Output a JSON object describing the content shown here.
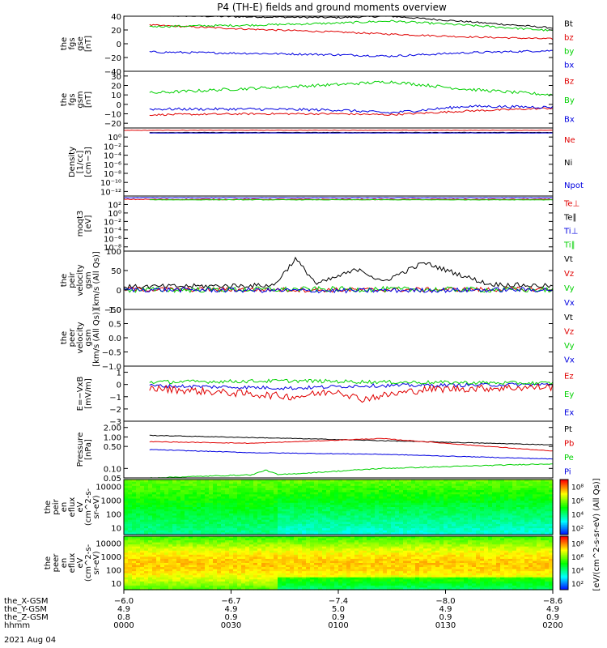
{
  "title": "P4 (TH-E) fields and ground moments overview",
  "date": "2021 Aug 04",
  "colors": {
    "black": "#000000",
    "red": "#e00000",
    "green": "#00d000",
    "blue": "#0000e0"
  },
  "chart_data": [
    {
      "type": "line",
      "name": "the_fgs_gse",
      "ylabel": [
        "the",
        "fgs",
        "gse",
        "[nT]"
      ],
      "ylim": [
        -40,
        40
      ],
      "yticks": [
        {
          "v": 40,
          "t": "40"
        },
        {
          "v": 20,
          "t": "20"
        },
        {
          "v": 0,
          "t": "0"
        },
        {
          "v": -20,
          "t": "−20"
        },
        {
          "v": -40,
          "t": "−40"
        }
      ],
      "legend": [
        {
          "t": "Bt",
          "c": "black"
        },
        {
          "t": "bz",
          "c": "red"
        },
        {
          "t": "by",
          "c": "green"
        },
        {
          "t": "bx",
          "c": "blue"
        }
      ],
      "series": [
        {
          "name": "Bt",
          "color": "black",
          "x": [
            0.06,
            0.3,
            0.5,
            0.62,
            0.8,
            1.0
          ],
          "y": [
            41,
            39,
            38,
            40,
            32,
            23
          ],
          "noise": 1.2
        },
        {
          "name": "bz",
          "color": "red",
          "x": [
            0.06,
            0.3,
            0.5,
            0.62,
            0.8,
            1.0
          ],
          "y": [
            27,
            21,
            17,
            14,
            10,
            7
          ],
          "noise": 1.2
        },
        {
          "name": "by",
          "color": "green",
          "x": [
            0.06,
            0.3,
            0.5,
            0.62,
            0.8,
            1.0
          ],
          "y": [
            25,
            27,
            30,
            33,
            27,
            19
          ],
          "noise": 1.5
        },
        {
          "name": "bx",
          "color": "blue",
          "x": [
            0.06,
            0.3,
            0.5,
            0.62,
            0.8,
            1.0
          ],
          "y": [
            -12,
            -14,
            -16,
            -18,
            -13,
            -10
          ],
          "noise": 1.5
        }
      ]
    },
    {
      "type": "line",
      "name": "the_fgs_gsm",
      "ylabel": [
        "the",
        "fgs",
        "gsm",
        "[nT]"
      ],
      "ylim": [
        -25,
        35
      ],
      "yticks": [
        {
          "v": 30,
          "t": "30"
        },
        {
          "v": 20,
          "t": "20"
        },
        {
          "v": 10,
          "t": "10"
        },
        {
          "v": 0,
          "t": "0"
        },
        {
          "v": -10,
          "t": "−10"
        },
        {
          "v": -20,
          "t": "−20"
        }
      ],
      "legend": [
        {
          "t": "Bz",
          "c": "red"
        },
        {
          "t": "By",
          "c": "green"
        },
        {
          "t": "Bx",
          "c": "blue"
        }
      ],
      "series": [
        {
          "name": "Bz",
          "color": "red",
          "x": [
            0.06,
            0.3,
            0.5,
            0.62,
            0.8,
            1.0
          ],
          "y": [
            -11,
            -10,
            -10,
            -11,
            -7,
            -4
          ],
          "noise": 1.0
        },
        {
          "name": "By",
          "color": "green",
          "x": [
            0.06,
            0.3,
            0.5,
            0.62,
            0.8,
            1.0
          ],
          "y": [
            12,
            17,
            21,
            24,
            16,
            10
          ],
          "noise": 1.6
        },
        {
          "name": "Bx",
          "color": "blue",
          "x": [
            0.06,
            0.3,
            0.5,
            0.62,
            0.8,
            1.0
          ],
          "y": [
            -5,
            -5,
            -6,
            -9,
            -2,
            -3
          ],
          "noise": 1.4
        }
      ]
    },
    {
      "type": "line",
      "name": "density",
      "log": true,
      "ylabel": [
        "Density",
        "[1/cc]",
        "[cm−3]"
      ],
      "ylim": [
        -13,
        2
      ],
      "yticks": [
        {
          "v": 0,
          "t": "10⁰"
        },
        {
          "v": -2,
          "t": "10⁻²"
        },
        {
          "v": -4,
          "t": "10⁻⁴"
        },
        {
          "v": -6,
          "t": "10⁻⁶"
        },
        {
          "v": -8,
          "t": "10⁻⁸"
        },
        {
          "v": -10,
          "t": "10⁻¹⁰"
        },
        {
          "v": -12,
          "t": "10⁻¹²"
        }
      ],
      "legend": [
        {
          "t": "Ne",
          "c": "red"
        },
        {
          "t": "Ni",
          "c": "black"
        },
        {
          "t": "Npot",
          "c": "blue"
        }
      ],
      "series": [
        {
          "name": "Ne",
          "color": "red",
          "x": [
            0.0,
            1.0
          ],
          "y": [
            1.5,
            1.5
          ],
          "noise": 0.05
        },
        {
          "name": "Ni",
          "color": "black",
          "x": [
            0.06,
            1.0
          ],
          "y": [
            1.0,
            1.0
          ],
          "noise": 0.05
        },
        {
          "name": "Npot",
          "color": "blue",
          "x": [
            0.06,
            1.0
          ],
          "y": [
            0.9,
            0.9
          ],
          "noise": 0.03
        }
      ]
    },
    {
      "type": "line",
      "name": "moqt3",
      "log": true,
      "ylabel": [
        "moqt3",
        "[eV]"
      ],
      "ylim": [
        -9,
        4
      ],
      "yticks": [
        {
          "v": 2,
          "t": "10²"
        },
        {
          "v": 0,
          "t": "10⁰"
        },
        {
          "v": -2,
          "t": "10⁻²"
        },
        {
          "v": -4,
          "t": "10⁻⁴"
        },
        {
          "v": -6,
          "t": "10⁻⁶"
        },
        {
          "v": -8,
          "t": "10⁻⁸"
        }
      ],
      "legend": [
        {
          "t": "Te⊥",
          "c": "red"
        },
        {
          "t": "Te∥",
          "c": "black"
        },
        {
          "t": "Ti⊥",
          "c": "blue"
        },
        {
          "t": "Ti∥",
          "c": "green"
        }
      ],
      "series": [
        {
          "name": "Te",
          "color": "red",
          "x": [
            0.0,
            1.0
          ],
          "y": [
            3.2,
            3.2
          ],
          "noise": 0.1
        },
        {
          "name": "Ti",
          "color": "blue",
          "x": [
            0.0,
            1.0
          ],
          "y": [
            3.6,
            3.6
          ],
          "noise": 0.05
        },
        {
          "name": "Tg",
          "color": "green",
          "x": [
            0.06,
            1.0
          ],
          "y": [
            3.1,
            3.1
          ],
          "noise": 0.05
        }
      ]
    },
    {
      "type": "line",
      "name": "peir_velocity",
      "ylabel": [
        "the",
        "peir",
        "velocity",
        "gsm",
        "[km/s (All Qs)]"
      ],
      "ylim": [
        -50,
        100
      ],
      "yticks": [
        {
          "v": 100,
          "t": "100"
        },
        {
          "v": 50,
          "t": "50"
        },
        {
          "v": 0,
          "t": "0"
        },
        {
          "v": -50,
          "t": "−50"
        }
      ],
      "legend": [
        {
          "t": "Vt",
          "c": "black"
        },
        {
          "t": "Vz",
          "c": "red"
        },
        {
          "t": "Vy",
          "c": "green"
        },
        {
          "t": "Vx",
          "c": "blue"
        }
      ],
      "series": [
        {
          "name": "Vt",
          "color": "black",
          "x": [
            0.0,
            0.35,
            0.4,
            0.45,
            0.55,
            0.6,
            0.7,
            0.85,
            1.0
          ],
          "y": [
            8,
            12,
            80,
            15,
            55,
            20,
            70,
            15,
            10
          ],
          "noise": 6
        },
        {
          "name": "Vz",
          "color": "red",
          "x": [
            0.0,
            0.5,
            1.0
          ],
          "y": [
            2,
            0,
            2
          ],
          "noise": 6
        },
        {
          "name": "Vy",
          "color": "green",
          "x": [
            0.0,
            0.5,
            1.0
          ],
          "y": [
            0,
            2,
            0
          ],
          "noise": 7
        },
        {
          "name": "Vx",
          "color": "blue",
          "x": [
            0.0,
            0.5,
            1.0
          ],
          "y": [
            1,
            -2,
            1
          ],
          "noise": 6
        }
      ]
    },
    {
      "type": "line",
      "name": "peer_velocity",
      "empty": true,
      "ylabel": [
        "the",
        "peer",
        "velocity",
        "gsm",
        "[km/s (All Qs)]"
      ],
      "ylim": [
        -1,
        1
      ],
      "yticks": [
        {
          "v": 1,
          "t": "1.0"
        },
        {
          "v": 0.5,
          "t": "0.5"
        },
        {
          "v": 0,
          "t": "0.0"
        },
        {
          "v": -0.5,
          "t": "−0.5"
        },
        {
          "v": -1,
          "t": "−1.0"
        }
      ],
      "legend": [
        {
          "t": "Vt",
          "c": "black"
        },
        {
          "t": "Vz",
          "c": "red"
        },
        {
          "t": "Vy",
          "c": "green"
        },
        {
          "t": "Vx",
          "c": "blue"
        }
      ],
      "series": []
    },
    {
      "type": "line",
      "name": "efield",
      "ylabel": [
        "E=−VxB",
        "[mV/m]"
      ],
      "ylim": [
        -3,
        1.5
      ],
      "yticks": [
        {
          "v": 1,
          "t": "1"
        },
        {
          "v": 0,
          "t": "0"
        },
        {
          "v": -1,
          "t": "−1"
        },
        {
          "v": -2,
          "t": "−2"
        },
        {
          "v": -3,
          "t": "−3"
        }
      ],
      "legend": [
        {
          "t": "Ez",
          "c": "red"
        },
        {
          "t": "Ey",
          "c": "green"
        },
        {
          "t": "Ex",
          "c": "blue"
        }
      ],
      "series": [
        {
          "name": "Ex",
          "color": "blue",
          "x": [
            0.06,
            0.4,
            0.55,
            1.0
          ],
          "y": [
            -0.1,
            -0.3,
            -0.1,
            0.0
          ],
          "noise": 0.15
        },
        {
          "name": "Ey",
          "color": "green",
          "x": [
            0.06,
            0.4,
            0.6,
            1.0
          ],
          "y": [
            0.2,
            0.3,
            0.2,
            0.1
          ],
          "noise": 0.15
        },
        {
          "name": "Ez",
          "color": "red",
          "x": [
            0.06,
            0.4,
            0.5,
            0.55,
            0.7,
            1.0
          ],
          "y": [
            -0.3,
            -1.0,
            -0.5,
            -1.2,
            -0.4,
            -0.2
          ],
          "noise": 0.3
        }
      ]
    },
    {
      "type": "line",
      "name": "pressure",
      "log": true,
      "ylabel": [
        "Pressure",
        "[nPa]"
      ],
      "ylim": [
        -1.3,
        0.5
      ],
      "yticks": [
        {
          "v": 0.301,
          "t": "2.00"
        },
        {
          "v": 0,
          "t": "1.00"
        },
        {
          "v": -0.301,
          "t": "0.50"
        },
        {
          "v": -1,
          "t": "0.10"
        },
        {
          "v": -1.301,
          "t": "0.05"
        }
      ],
      "legend": [
        {
          "t": "Pt",
          "c": "black"
        },
        {
          "t": "Pb",
          "c": "red"
        },
        {
          "t": "Pe",
          "c": "green"
        },
        {
          "t": "Pi",
          "c": "blue"
        }
      ],
      "series": [
        {
          "name": "Pt",
          "color": "black",
          "x": [
            0.06,
            0.4,
            1.0
          ],
          "y": [
            0.05,
            -0.05,
            -0.25
          ],
          "noise": 0.01
        },
        {
          "name": "Pb",
          "color": "red",
          "x": [
            0.06,
            0.3,
            0.6,
            1.0
          ],
          "y": [
            -0.15,
            -0.2,
            -0.05,
            -0.45
          ],
          "noise": 0.01
        },
        {
          "name": "Pi",
          "color": "blue",
          "x": [
            0.06,
            0.3,
            0.6,
            1.0
          ],
          "y": [
            -0.4,
            -0.5,
            -0.55,
            -0.7
          ],
          "noise": 0.01
        },
        {
          "name": "Pe",
          "color": "green",
          "x": [
            0.06,
            0.3,
            0.33,
            0.36,
            0.6,
            1.0
          ],
          "y": [
            -1.3,
            -1.2,
            -1.05,
            -1.2,
            -1.0,
            -0.85
          ],
          "noise": 0.015
        }
      ]
    },
    {
      "type": "heatmap",
      "name": "peir_en_eflux",
      "ylabel": [
        "the",
        "peir",
        "en",
        "eflux",
        "eV",
        "(cm^2-s-",
        "sr-eV)"
      ],
      "yticks": [
        "10000",
        "1000",
        "100",
        "10"
      ]
    },
    {
      "type": "heatmap",
      "name": "peer_en_eflux",
      "ylabel": [
        "the",
        "peer",
        "en",
        "eflux",
        "eV",
        "(cm^2-s-",
        "sr-eV)"
      ],
      "yticks": [
        "10000",
        "1000",
        "100",
        "10"
      ]
    }
  ],
  "colorbar": {
    "label": "[eV/(cm^2-s-sr-eV) (All Qs)]",
    "ticks_top": [
      "10⁸",
      "10⁶",
      "10⁴",
      "10²"
    ],
    "ticks_bottom": [
      "10⁸",
      "10⁶",
      "10⁴",
      "10²"
    ]
  },
  "xaxis": {
    "rows": [
      "the_X-GSM",
      "the_Y-GSM",
      "the_Z-GSM",
      "hhmm"
    ],
    "ticks": [
      {
        "x": 0.0,
        "vals": [
          "−6.0",
          "4.9",
          "0.8",
          "0000"
        ]
      },
      {
        "x": 0.25,
        "vals": [
          "−6.7",
          "4.9",
          "0.9",
          "0030"
        ]
      },
      {
        "x": 0.5,
        "vals": [
          "−7.4",
          "5.0",
          "0.9",
          "0100"
        ]
      },
      {
        "x": 0.75,
        "vals": [
          "−8.0",
          "4.9",
          "0.9",
          "0130"
        ]
      },
      {
        "x": 1.0,
        "vals": [
          "−8.6",
          "4.9",
          "0.9",
          "0200"
        ]
      }
    ]
  }
}
